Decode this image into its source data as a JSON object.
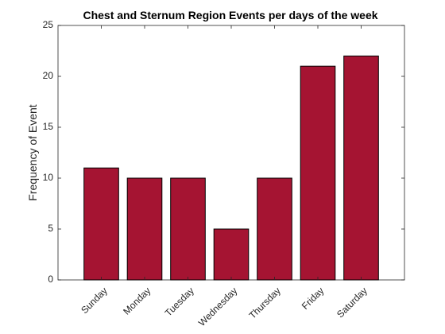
{
  "chart_data": {
    "type": "bar",
    "title": "Chest and Sternum Region Events per days of the week",
    "xlabel": "",
    "ylabel": "Frequency of Event",
    "categories": [
      "Sunday",
      "Monday",
      "Tuesday",
      "Wednesday",
      "Thursday",
      "Friday",
      "Saturday"
    ],
    "values": [
      11,
      10,
      10,
      5,
      10,
      21,
      22
    ],
    "ylim": [
      0,
      25
    ],
    "yticks": [
      0,
      5,
      10,
      15,
      20,
      25
    ],
    "grid": false,
    "bar_color": "#A51432",
    "edge_color": "#000000"
  }
}
